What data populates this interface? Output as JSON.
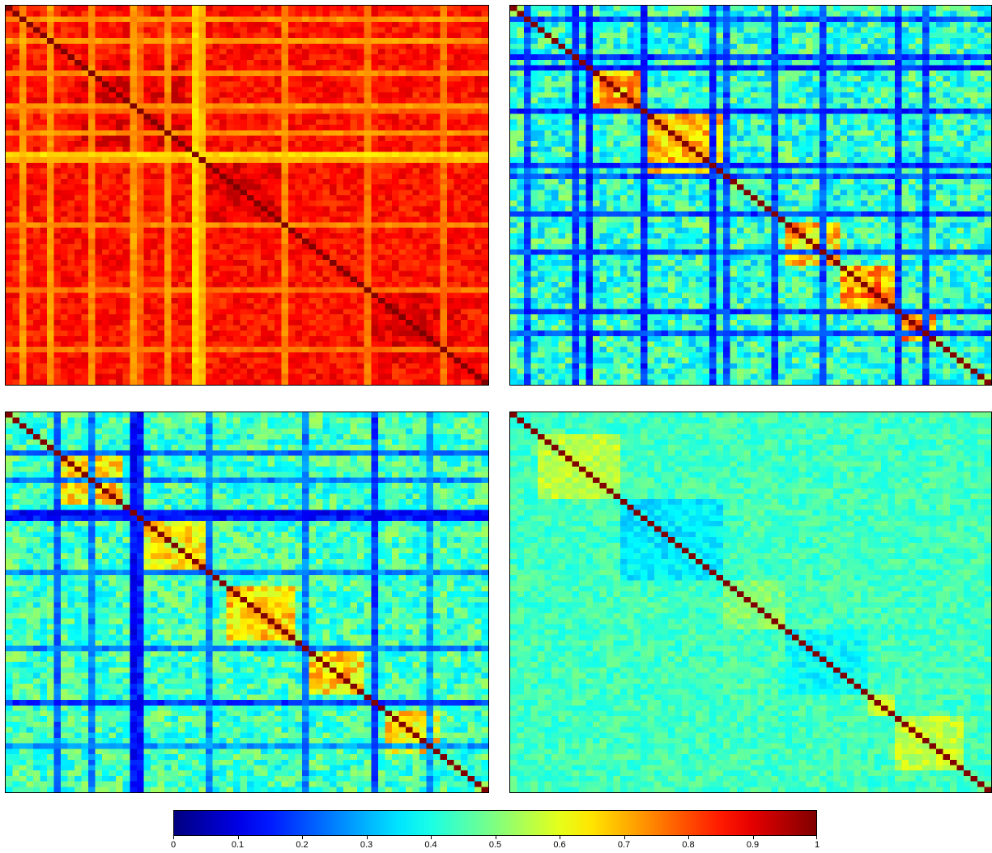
{
  "chart_data": [
    {
      "type": "heatmap",
      "matrix_size": 70,
      "colormap": "jet",
      "value_range": [
        0,
        1
      ],
      "diagonal_value": 1.0,
      "base_value": 0.86,
      "variation": 0.05,
      "row_col_bands": [
        {
          "index": 2,
          "value": 0.73
        },
        {
          "index": 6,
          "value": 0.72
        },
        {
          "index": 12,
          "value": 0.74
        },
        {
          "index": 18,
          "value": 0.72
        },
        {
          "index": 19,
          "value": 0.78
        },
        {
          "index": 23,
          "value": 0.73
        },
        {
          "index": 27,
          "value": 0.66
        },
        {
          "index": 28,
          "value": 0.7
        },
        {
          "index": 40,
          "value": 0.74
        },
        {
          "index": 52,
          "value": 0.76
        },
        {
          "index": 63,
          "value": 0.76
        }
      ],
      "blocks": [
        {
          "start": 10,
          "end": 26,
          "value": 0.9
        },
        {
          "start": 28,
          "end": 40,
          "value": 0.9
        },
        {
          "start": 52,
          "end": 66,
          "value": 0.9
        }
      ]
    },
    {
      "type": "heatmap",
      "matrix_size": 70,
      "colormap": "jet",
      "value_range": [
        0,
        1
      ],
      "diagonal_value": 1.0,
      "base_value": 0.42,
      "variation": 0.12,
      "row_col_bands": [
        {
          "index": 2,
          "value": 0.2
        },
        {
          "index": 9,
          "value": 0.18
        },
        {
          "index": 11,
          "value": 0.15
        },
        {
          "index": 19,
          "value": 0.16
        },
        {
          "index": 29,
          "value": 0.18
        },
        {
          "index": 31,
          "value": 0.2
        },
        {
          "index": 38,
          "value": 0.18
        },
        {
          "index": 45,
          "value": 0.2
        },
        {
          "index": 56,
          "value": 0.18
        },
        {
          "index": 60,
          "value": 0.2
        }
      ],
      "blocks": [
        {
          "start": 12,
          "end": 20,
          "value": 0.7
        },
        {
          "start": 20,
          "end": 32,
          "value": 0.68
        },
        {
          "start": 40,
          "end": 48,
          "value": 0.68
        },
        {
          "start": 48,
          "end": 56,
          "value": 0.72
        },
        {
          "start": 56,
          "end": 62,
          "value": 0.7
        }
      ]
    },
    {
      "type": "heatmap",
      "matrix_size": 70,
      "colormap": "jet",
      "value_range": [
        0,
        1
      ],
      "diagonal_value": 1.0,
      "base_value": 0.44,
      "variation": 0.1,
      "row_col_bands": [
        {
          "index": 7,
          "value": 0.22
        },
        {
          "index": 12,
          "value": 0.25
        },
        {
          "index": 18,
          "value": 0.13
        },
        {
          "index": 19,
          "value": 0.15
        },
        {
          "index": 29,
          "value": 0.25
        },
        {
          "index": 43,
          "value": 0.25
        },
        {
          "index": 53,
          "value": 0.18
        },
        {
          "index": 61,
          "value": 0.28
        }
      ],
      "blocks": [
        {
          "start": 7,
          "end": 17,
          "value": 0.66
        },
        {
          "start": 20,
          "end": 30,
          "value": 0.64
        },
        {
          "start": 32,
          "end": 42,
          "value": 0.66
        },
        {
          "start": 44,
          "end": 52,
          "value": 0.66
        },
        {
          "start": 55,
          "end": 63,
          "value": 0.64
        }
      ]
    },
    {
      "type": "heatmap",
      "matrix_size": 70,
      "colormap": "jet",
      "value_range": [
        0,
        1
      ],
      "diagonal_value": 1.0,
      "base_value": 0.44,
      "variation": 0.05,
      "row_col_bands": [],
      "blocks": [
        {
          "start": 4,
          "end": 16,
          "value": 0.56
        },
        {
          "start": 16,
          "end": 31,
          "value": 0.36
        },
        {
          "start": 31,
          "end": 40,
          "value": 0.5
        },
        {
          "start": 40,
          "end": 52,
          "value": 0.38
        },
        {
          "start": 52,
          "end": 56,
          "value": 0.58
        },
        {
          "start": 56,
          "end": 66,
          "value": 0.56
        }
      ]
    }
  ],
  "colorbar": {
    "colormap": "jet",
    "range": [
      0,
      1
    ],
    "ticks": [
      {
        "value": 0,
        "label": "0"
      },
      {
        "value": 0.1,
        "label": "0.1"
      },
      {
        "value": 0.2,
        "label": "0.2"
      },
      {
        "value": 0.3,
        "label": "0.3"
      },
      {
        "value": 0.4,
        "label": "0.4"
      },
      {
        "value": 0.5,
        "label": "0.5"
      },
      {
        "value": 0.6,
        "label": "0.6"
      },
      {
        "value": 0.7,
        "label": "0.7"
      },
      {
        "value": 0.8,
        "label": "0.8"
      },
      {
        "value": 0.9,
        "label": "0.9"
      },
      {
        "value": 1,
        "label": "1"
      }
    ]
  }
}
